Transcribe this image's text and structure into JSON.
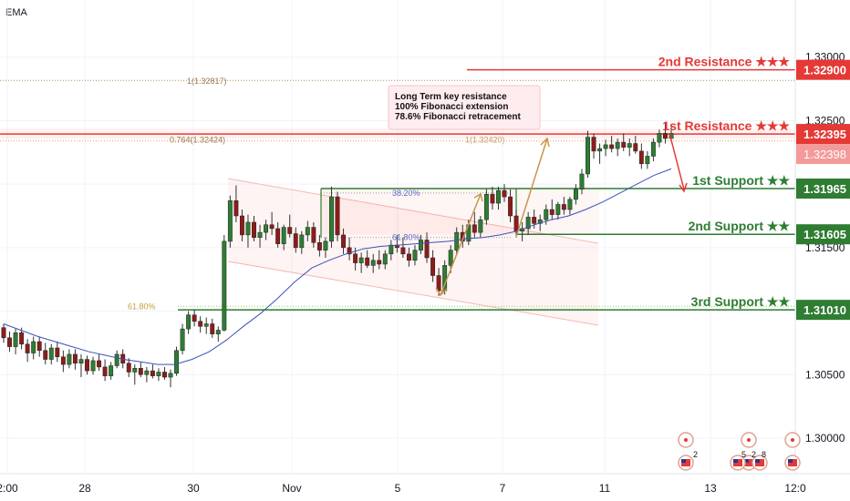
{
  "indicator": "EMA",
  "chart_data": {
    "type": "candlestick",
    "ylim": [
      1.2972,
      1.3345
    ],
    "grid": true,
    "y_ticks": [
      "1.30000",
      "1.30500",
      "1.31000",
      "1.31500",
      "1.32000",
      "1.32500",
      "1.33000"
    ],
    "x_ticks": [
      "2:00",
      "28",
      "30",
      "Nov",
      "5",
      "7",
      "11",
      "13",
      "12:0"
    ],
    "levels": [
      {
        "name": "2nd Resistance",
        "stars": "★★★",
        "price": 1.329,
        "tag": "1.32900",
        "color": "#e53935"
      },
      {
        "name": "1st Resistance",
        "stars": "★★★",
        "price": 1.32395,
        "tag": "1.32395",
        "color": "#e53935"
      },
      {
        "name": "1st Support",
        "stars": "★★",
        "price": 1.31965,
        "tag": "1.31965",
        "color": "#2e7d32"
      },
      {
        "name": "2nd Support",
        "stars": "★★",
        "price": 1.31605,
        "tag": "1.31605",
        "color": "#2e7d32"
      },
      {
        "name": "3rd Support",
        "stars": "★★",
        "price": 1.3101,
        "tag": "1.31010",
        "color": "#2e7d32"
      }
    ],
    "current_price": "1.32398",
    "fib_labels": [
      {
        "text": "1(1.32817)",
        "price": 1.32817
      },
      {
        "text": "0.764(1.32424)",
        "price": 1.32424
      },
      {
        "text": "1(1.32420)",
        "price": 1.3242
      },
      {
        "text": "38.20%",
        "price": 1.31965
      },
      {
        "text": "61.80%",
        "price": 1.31605
      },
      {
        "text": "61.80%",
        "price": 1.3101
      }
    ],
    "annotation": [
      "Long Term key resistance",
      "100% Fibonacci extension",
      "78.6% Fibonacci retracement"
    ],
    "event_numbers": [
      "2",
      "5",
      "2",
      "8"
    ],
    "candles": [
      [
        1.3087,
        1.309,
        1.3075,
        1.3079
      ],
      [
        1.3079,
        1.3084,
        1.3068,
        1.3072
      ],
      [
        1.3072,
        1.3086,
        1.3066,
        1.3083
      ],
      [
        1.3083,
        1.3087,
        1.307,
        1.3074
      ],
      [
        1.3074,
        1.3078,
        1.306,
        1.3067
      ],
      [
        1.3067,
        1.308,
        1.3062,
        1.3076
      ],
      [
        1.3076,
        1.308,
        1.3064,
        1.3069
      ],
      [
        1.3069,
        1.3075,
        1.3058,
        1.3062
      ],
      [
        1.3062,
        1.3074,
        1.3058,
        1.3071
      ],
      [
        1.3071,
        1.3076,
        1.306,
        1.3064
      ],
      [
        1.3064,
        1.3069,
        1.3052,
        1.3058
      ],
      [
        1.3058,
        1.307,
        1.3055,
        1.3066
      ],
      [
        1.3066,
        1.307,
        1.3054,
        1.3059
      ],
      [
        1.3059,
        1.3066,
        1.3048,
        1.3062
      ],
      [
        1.3062,
        1.3065,
        1.305,
        1.3053
      ],
      [
        1.3053,
        1.3064,
        1.305,
        1.3061
      ],
      [
        1.3061,
        1.3066,
        1.3053,
        1.3056
      ],
      [
        1.3056,
        1.3062,
        1.3045,
        1.3049
      ],
      [
        1.3049,
        1.306,
        1.3046,
        1.3057
      ],
      [
        1.3057,
        1.3069,
        1.3055,
        1.3066
      ],
      [
        1.3066,
        1.307,
        1.3055,
        1.3059
      ],
      [
        1.3059,
        1.3063,
        1.3048,
        1.3052
      ],
      [
        1.3052,
        1.3058,
        1.3042,
        1.3055
      ],
      [
        1.3055,
        1.306,
        1.3048,
        1.305
      ],
      [
        1.305,
        1.3056,
        1.3044,
        1.3053
      ],
      [
        1.3053,
        1.3058,
        1.3047,
        1.3049
      ],
      [
        1.3049,
        1.3055,
        1.3045,
        1.3052
      ],
      [
        1.3052,
        1.3056,
        1.3046,
        1.3048
      ],
      [
        1.3048,
        1.3054,
        1.304,
        1.3051
      ],
      [
        1.3051,
        1.3072,
        1.3049,
        1.3069
      ],
      [
        1.3069,
        1.309,
        1.3066,
        1.3086
      ],
      [
        1.3086,
        1.31,
        1.3082,
        1.3097
      ],
      [
        1.3097,
        1.3101,
        1.3088,
        1.3092
      ],
      [
        1.3092,
        1.3096,
        1.3083,
        1.3088
      ],
      [
        1.3088,
        1.3095,
        1.3082,
        1.309
      ],
      [
        1.309,
        1.3094,
        1.3079,
        1.3082
      ],
      [
        1.3082,
        1.3088,
        1.3076,
        1.3085
      ],
      [
        1.3085,
        1.316,
        1.3084,
        1.3155
      ],
      [
        1.3155,
        1.3191,
        1.315,
        1.3187
      ],
      [
        1.3187,
        1.3199,
        1.317,
        1.3175
      ],
      [
        1.3175,
        1.318,
        1.3155,
        1.316
      ],
      [
        1.316,
        1.3176,
        1.315,
        1.317
      ],
      [
        1.317,
        1.3175,
        1.3155,
        1.3158
      ],
      [
        1.3158,
        1.3168,
        1.315,
        1.3162
      ],
      [
        1.3162,
        1.3172,
        1.3156,
        1.3168
      ],
      [
        1.3168,
        1.3178,
        1.316,
        1.3165
      ],
      [
        1.3165,
        1.317,
        1.315,
        1.3153
      ],
      [
        1.3153,
        1.3168,
        1.3148,
        1.3166
      ],
      [
        1.3166,
        1.3176,
        1.3158,
        1.3161
      ],
      [
        1.3161,
        1.3166,
        1.3146,
        1.315
      ],
      [
        1.315,
        1.3163,
        1.3145,
        1.316
      ],
      [
        1.316,
        1.3171,
        1.3155,
        1.3166
      ],
      [
        1.3166,
        1.317,
        1.315,
        1.3154
      ],
      [
        1.3154,
        1.316,
        1.3143,
        1.3148
      ],
      [
        1.3148,
        1.3158,
        1.3142,
        1.3155
      ],
      [
        1.3155,
        1.3198,
        1.315,
        1.319
      ],
      [
        1.319,
        1.3194,
        1.3155,
        1.316
      ],
      [
        1.316,
        1.3165,
        1.3145,
        1.315
      ],
      [
        1.315,
        1.3158,
        1.314,
        1.3145
      ],
      [
        1.3145,
        1.315,
        1.3132,
        1.3138
      ],
      [
        1.3138,
        1.3146,
        1.313,
        1.3142
      ],
      [
        1.3142,
        1.3148,
        1.3134,
        1.3136
      ],
      [
        1.3136,
        1.3145,
        1.313,
        1.314
      ],
      [
        1.314,
        1.3148,
        1.3133,
        1.3137
      ],
      [
        1.3137,
        1.3148,
        1.3133,
        1.3145
      ],
      [
        1.3145,
        1.3156,
        1.314,
        1.3152
      ],
      [
        1.3152,
        1.316,
        1.3146,
        1.315
      ],
      [
        1.315,
        1.3158,
        1.3142,
        1.3145
      ],
      [
        1.3145,
        1.315,
        1.3135,
        1.314
      ],
      [
        1.314,
        1.3152,
        1.3136,
        1.3148
      ],
      [
        1.3148,
        1.316,
        1.3145,
        1.3156
      ],
      [
        1.3156,
        1.3162,
        1.3138,
        1.3142
      ],
      [
        1.3142,
        1.3148,
        1.3123,
        1.3128
      ],
      [
        1.3128,
        1.3134,
        1.3112,
        1.3116
      ],
      [
        1.3116,
        1.314,
        1.3113,
        1.3136
      ],
      [
        1.3136,
        1.3152,
        1.313,
        1.3148
      ],
      [
        1.3148,
        1.3166,
        1.3144,
        1.3162
      ],
      [
        1.3162,
        1.3168,
        1.315,
        1.3155
      ],
      [
        1.3155,
        1.3172,
        1.3152,
        1.3168
      ],
      [
        1.3168,
        1.3178,
        1.3158,
        1.3162
      ],
      [
        1.3162,
        1.3175,
        1.3158,
        1.3172
      ],
      [
        1.3172,
        1.3196,
        1.3168,
        1.3192
      ],
      [
        1.3192,
        1.3198,
        1.318,
        1.3185
      ],
      [
        1.3185,
        1.3198,
        1.318,
        1.3195
      ],
      [
        1.3195,
        1.32,
        1.3186,
        1.319
      ],
      [
        1.319,
        1.3196,
        1.317,
        1.3175
      ],
      [
        1.3175,
        1.318,
        1.3158,
        1.3163
      ],
      [
        1.3163,
        1.317,
        1.3155,
        1.3165
      ],
      [
        1.3165,
        1.3178,
        1.316,
        1.3174
      ],
      [
        1.3174,
        1.318,
        1.3165,
        1.3169
      ],
      [
        1.3169,
        1.3176,
        1.3163,
        1.3172
      ],
      [
        1.3172,
        1.3184,
        1.3168,
        1.318
      ],
      [
        1.318,
        1.3188,
        1.3172,
        1.3176
      ],
      [
        1.3176,
        1.3186,
        1.3172,
        1.3184
      ],
      [
        1.3184,
        1.319,
        1.3176,
        1.318
      ],
      [
        1.318,
        1.319,
        1.3176,
        1.3188
      ],
      [
        1.3188,
        1.32,
        1.3184,
        1.3196
      ],
      [
        1.3196,
        1.3212,
        1.3192,
        1.3208
      ],
      [
        1.3208,
        1.3242,
        1.3205,
        1.3237
      ],
      [
        1.3237,
        1.324,
        1.322,
        1.3226
      ],
      [
        1.3226,
        1.3232,
        1.3216,
        1.3228
      ],
      [
        1.3228,
        1.3235,
        1.3222,
        1.3231
      ],
      [
        1.3231,
        1.3238,
        1.3225,
        1.3228
      ],
      [
        1.3228,
        1.3236,
        1.3222,
        1.3233
      ],
      [
        1.3233,
        1.324,
        1.3226,
        1.3229
      ],
      [
        1.3229,
        1.3236,
        1.3222,
        1.3232
      ],
      [
        1.3232,
        1.3238,
        1.3224,
        1.3226
      ],
      [
        1.3226,
        1.3232,
        1.3212,
        1.3216
      ],
      [
        1.3216,
        1.3226,
        1.3212,
        1.3222
      ],
      [
        1.3222,
        1.3236,
        1.3218,
        1.3233
      ],
      [
        1.3233,
        1.3243,
        1.3229,
        1.324
      ],
      [
        1.324,
        1.3248,
        1.3232,
        1.3236
      ],
      [
        1.3236,
        1.3245,
        1.3234,
        1.324
      ]
    ],
    "ema": [
      1.309,
      1.3085,
      1.308,
      1.3076,
      1.3072,
      1.3068,
      1.3065,
      1.3062,
      1.306,
      1.3058,
      1.3058,
      1.3062,
      1.3068,
      1.3077,
      1.3088,
      1.3098,
      1.311,
      1.3123,
      1.3134,
      1.314,
      1.3145,
      1.3149,
      1.3151,
      1.3152,
      1.3153,
      1.3154,
      1.3155,
      1.3157,
      1.3158,
      1.316,
      1.3163,
      1.3168,
      1.3172,
      1.3175,
      1.318,
      1.3186,
      1.3193,
      1.32,
      1.3207,
      1.3212
    ]
  }
}
